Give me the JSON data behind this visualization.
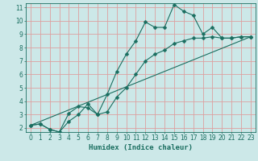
{
  "xlabel": "Humidex (Indice chaleur)",
  "background_color": "#cce8e8",
  "grid_color": "#dda0a0",
  "line_color": "#1a6e60",
  "xmin": 0,
  "xmax": 23,
  "ymin": 2,
  "ymax": 11,
  "line1_x": [
    0,
    1,
    2,
    3,
    4,
    5,
    6,
    7,
    8,
    9,
    10,
    11,
    12,
    13,
    14,
    15,
    16,
    17,
    18,
    19,
    20,
    21,
    22,
    23
  ],
  "line1_y": [
    2.2,
    2.3,
    1.9,
    1.7,
    3.1,
    3.6,
    3.5,
    3.0,
    4.5,
    6.2,
    7.5,
    8.5,
    9.9,
    9.5,
    9.5,
    11.2,
    10.7,
    10.4,
    9.0,
    9.5,
    8.7,
    8.7,
    8.8,
    8.8
  ],
  "line2_x": [
    0,
    1,
    2,
    3,
    4,
    5,
    6,
    7,
    8,
    9,
    10,
    11,
    12,
    13,
    14,
    15,
    16,
    17,
    18,
    19,
    20,
    21,
    22,
    23
  ],
  "line2_y": [
    2.2,
    2.3,
    1.9,
    1.7,
    2.5,
    3.0,
    3.8,
    3.0,
    3.2,
    4.3,
    5.0,
    6.0,
    7.0,
    7.5,
    7.8,
    8.3,
    8.5,
    8.7,
    8.7,
    8.8,
    8.7,
    8.7,
    8.8,
    8.8
  ],
  "line3_x": [
    0,
    23
  ],
  "line3_y": [
    2.2,
    8.8
  ]
}
